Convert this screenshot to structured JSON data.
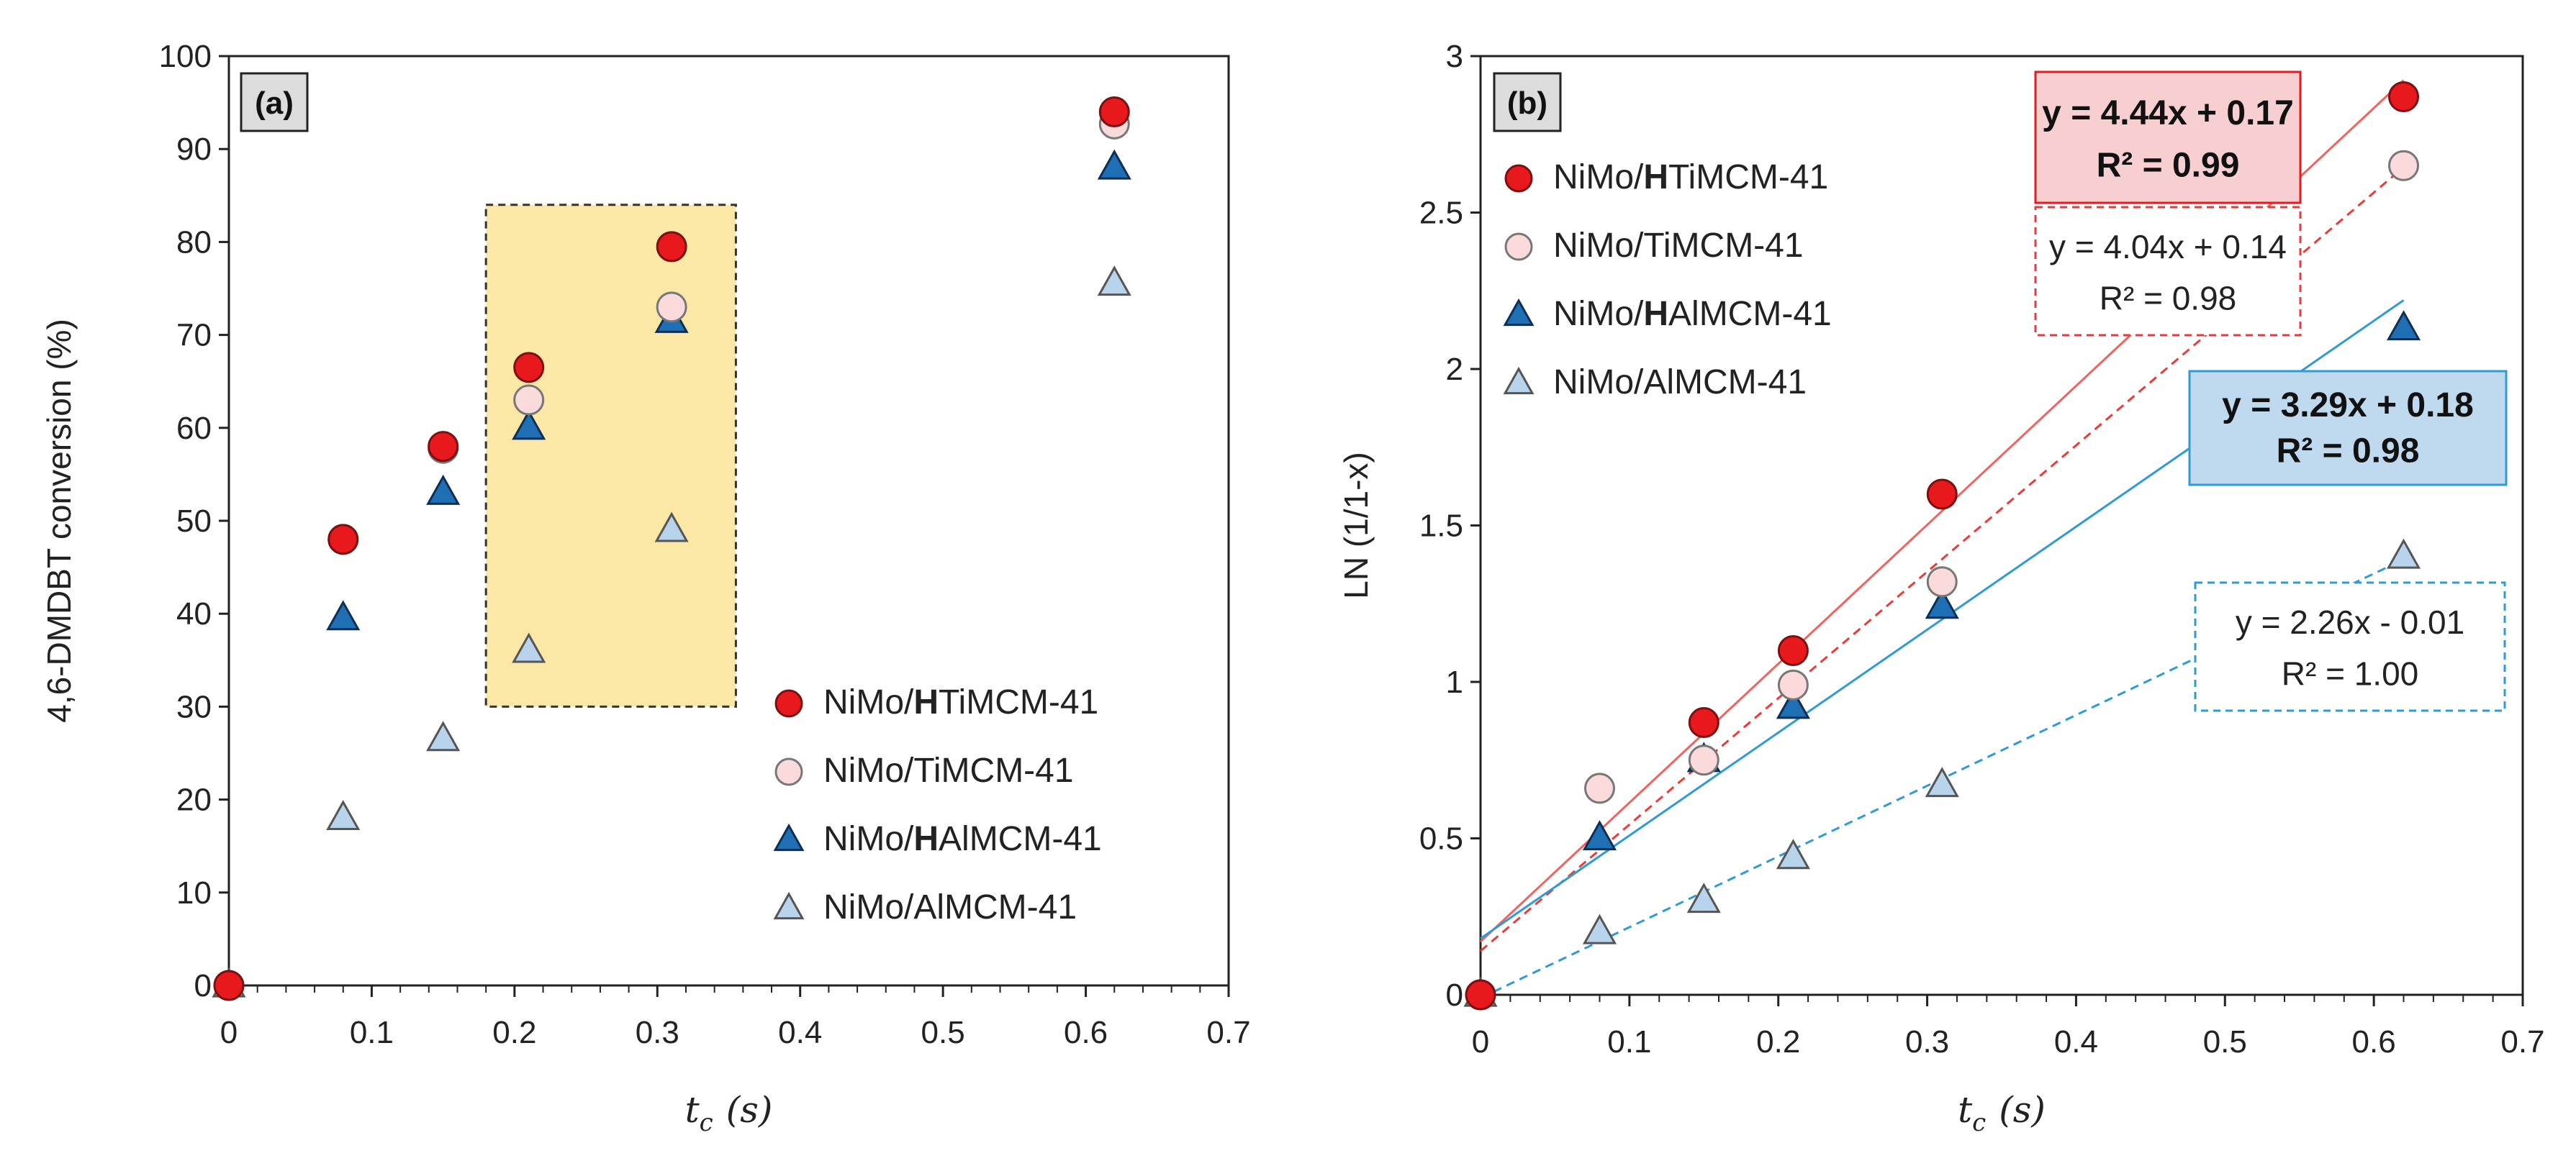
{
  "chart_data": [
    {
      "id": "a",
      "type": "scatter",
      "panel_label": "(a)",
      "xlabel": "t",
      "xlabel_sub": "c",
      "xlabel_unit": "(s)",
      "ylabel": "4,6-DMDBT conversion (%)",
      "xlim": [
        0,
        0.7
      ],
      "ylim": [
        0,
        100
      ],
      "xticks": [
        "0",
        "0.1",
        "0.2",
        "0.3",
        "0.4",
        "0.5",
        "0.6",
        "0.7"
      ],
      "yticks": [
        "0",
        "10",
        "20",
        "30",
        "40",
        "50",
        "60",
        "70",
        "80",
        "90",
        "100"
      ],
      "highlight_box": {
        "x0": 0.18,
        "x1": 0.355,
        "y0": 30,
        "y1": 84
      },
      "legend_position": "bottom-right",
      "series": [
        {
          "name": "NiMo/HTiMCM-41",
          "name_pre": "NiMo/",
          "name_bold": "H",
          "name_post": "TiMCM-41",
          "marker": "circle",
          "color": "#e8191c",
          "stroke": "#7a1010",
          "x": [
            0,
            0.08,
            0.15,
            0.21,
            0.31,
            0.62
          ],
          "y": [
            0,
            48,
            58,
            66.5,
            79.5,
            94
          ]
        },
        {
          "name": "NiMo/TiMCM-41",
          "name_pre": "NiMo/TiMCM-41",
          "name_bold": "",
          "name_post": "",
          "marker": "circle",
          "color": "#fadadb",
          "stroke": "#777777",
          "x": [
            0,
            0.08,
            0.15,
            0.21,
            0.31,
            0.62
          ],
          "y": [
            0,
            48,
            57.8,
            63,
            73,
            92.7
          ]
        },
        {
          "name": "NiMo/HAlMCM-41",
          "name_pre": "NiMo/",
          "name_bold": "H",
          "name_post": "AlMCM-41",
          "marker": "triangle",
          "color": "#1f6fb5",
          "stroke": "#0e2f55",
          "x": [
            0.08,
            0.15,
            0.21,
            0.31,
            0.62
          ],
          "y": [
            39.5,
            53,
            60,
            71.5,
            88
          ]
        },
        {
          "name": "NiMo/AlMCM-41",
          "name_pre": "NiMo/AlMCM-41",
          "name_bold": "",
          "name_post": "",
          "marker": "triangle",
          "color": "#b8d3ec",
          "stroke": "#555555",
          "x": [
            0,
            0.08,
            0.15,
            0.21,
            0.31,
            0.62
          ],
          "y": [
            0,
            18,
            26.5,
            36,
            49,
            75.5
          ]
        }
      ]
    },
    {
      "id": "b",
      "type": "scatter",
      "panel_label": "(b)",
      "xlabel": "t",
      "xlabel_sub": "c",
      "xlabel_unit": "(s)",
      "ylabel": "LN (1/1-x)",
      "xlim": [
        0,
        0.7
      ],
      "ylim": [
        0,
        3
      ],
      "xticks": [
        "0",
        "0.1",
        "0.2",
        "0.3",
        "0.4",
        "0.5",
        "0.6",
        "0.7"
      ],
      "yticks": [
        "0",
        "0.5",
        "1",
        "1.5",
        "2",
        "2.5",
        "3"
      ],
      "legend_position": "top-left",
      "series": [
        {
          "name": "NiMo/HTiMCM-41",
          "name_pre": "NiMo/",
          "name_bold": "H",
          "name_post": "TiMCM-41",
          "marker": "circle",
          "color": "#e8191c",
          "stroke": "#7a1010",
          "x": [
            0,
            0.15,
            0.21,
            0.31,
            0.62
          ],
          "y": [
            0,
            0.87,
            1.1,
            1.6,
            2.87
          ]
        },
        {
          "name": "NiMo/TiMCM-41",
          "name_pre": "NiMo/TiMCM-41",
          "name_bold": "",
          "name_post": "",
          "marker": "circle",
          "color": "#fadadb",
          "stroke": "#777777",
          "x": [
            0,
            0.08,
            0.15,
            0.21,
            0.31,
            0.62
          ],
          "y": [
            0,
            0.66,
            0.75,
            0.99,
            1.32,
            2.65
          ]
        },
        {
          "name": "NiMo/HAlMCM-41",
          "name_pre": "NiMo/",
          "name_bold": "H",
          "name_post": "AlMCM-41",
          "marker": "triangle",
          "color": "#1f6fb5",
          "stroke": "#0e2f55",
          "x": [
            0.08,
            0.15,
            0.21,
            0.31,
            0.62
          ],
          "y": [
            0.5,
            0.75,
            0.92,
            1.24,
            2.13
          ]
        },
        {
          "name": "NiMo/AlMCM-41",
          "name_pre": "NiMo/AlMCM-41",
          "name_bold": "",
          "name_post": "",
          "marker": "triangle",
          "color": "#b8d3ec",
          "stroke": "#555555",
          "x": [
            0,
            0.08,
            0.15,
            0.21,
            0.31,
            0.62
          ],
          "y": [
            0,
            0.2,
            0.3,
            0.44,
            0.67,
            1.4
          ]
        }
      ],
      "fits": [
        {
          "series": "NiMo/HTiMCM-41",
          "slope": 4.44,
          "intercept": 0.17,
          "equation": "y = 4.44x + 0.17",
          "r2": "R² = 0.99",
          "line_color": "#f2625f",
          "dashed": false,
          "box_fill": "#f7cfd0",
          "box_stroke": "#e8191c",
          "box_dashed": false,
          "bold": true
        },
        {
          "series": "NiMo/TiMCM-41",
          "slope": 4.04,
          "intercept": 0.14,
          "equation": "y = 4.04x + 0.14",
          "r2": "R² = 0.98",
          "line_color": "#ee3a36",
          "dashed": true,
          "box_fill": "#ffffff",
          "box_stroke": "#ee3a36",
          "box_dashed": true,
          "bold": false
        },
        {
          "series": "NiMo/HAlMCM-41",
          "slope": 3.29,
          "intercept": 0.18,
          "equation": "y = 3.29x + 0.18",
          "r2": "R² = 0.98",
          "line_color": "#2e9ad6",
          "dashed": false,
          "box_fill": "#bfd9ef",
          "box_stroke": "#2e9ad6",
          "box_dashed": false,
          "bold": true
        },
        {
          "series": "NiMo/AlMCM-41",
          "slope": 2.26,
          "intercept": -0.01,
          "equation": "y = 2.26x - 0.01",
          "r2": "R² = 1.00",
          "line_color": "#2e9ad6",
          "dashed": true,
          "box_fill": "#ffffff",
          "box_stroke": "#2e9ad6",
          "box_dashed": true,
          "bold": false
        }
      ]
    }
  ]
}
